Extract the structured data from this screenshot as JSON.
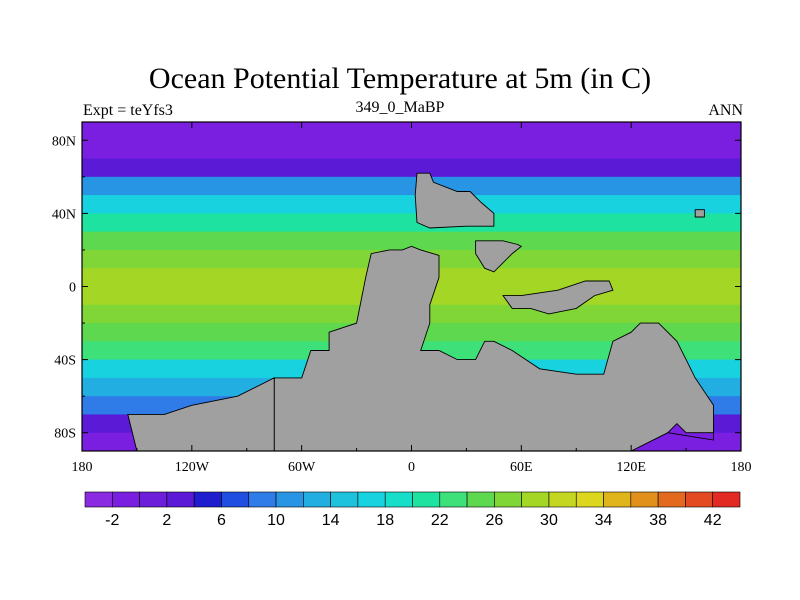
{
  "chart_data": {
    "type": "heatmap",
    "title": "Ocean Potential Temperature at 5m (in C)",
    "left_string": "Expt = teYfs3",
    "center_string": "349_0_MaBP",
    "right_string": "ANN",
    "x_range": [
      -180,
      180
    ],
    "y_range": [
      -90,
      90
    ],
    "x_ticks": [
      {
        "value": -180,
        "label": "180"
      },
      {
        "value": -120,
        "label": "120W"
      },
      {
        "value": -60,
        "label": "60W"
      },
      {
        "value": 0,
        "label": "0"
      },
      {
        "value": 60,
        "label": "60E"
      },
      {
        "value": 120,
        "label": "120E"
      },
      {
        "value": 180,
        "label": "180"
      }
    ],
    "y_ticks": [
      {
        "value": 80,
        "label": "80N"
      },
      {
        "value": 40,
        "label": "40N"
      },
      {
        "value": 0,
        "label": "0"
      },
      {
        "value": -40,
        "label": "40S"
      },
      {
        "value": -80,
        "label": "80S"
      }
    ],
    "colorbar": {
      "boundaries": [
        -4,
        -2,
        0,
        2,
        4,
        6,
        8,
        10,
        12,
        14,
        16,
        18,
        20,
        22,
        24,
        26,
        28,
        30,
        32,
        34,
        36,
        38,
        40,
        42,
        44
      ],
      "labels": [
        {
          "value": -2,
          "label": "-2"
        },
        {
          "value": 2,
          "label": "2"
        },
        {
          "value": 6,
          "label": "6"
        },
        {
          "value": 10,
          "label": "10"
        },
        {
          "value": 14,
          "label": "14"
        },
        {
          "value": 18,
          "label": "18"
        },
        {
          "value": 22,
          "label": "22"
        },
        {
          "value": 26,
          "label": "26"
        },
        {
          "value": 30,
          "label": "30"
        },
        {
          "value": 34,
          "label": "34"
        },
        {
          "value": 38,
          "label": "38"
        },
        {
          "value": 42,
          "label": "42"
        }
      ],
      "colors": [
        "#8a2be2",
        "#7a1fe0",
        "#6c1ed8",
        "#5a1ad6",
        "#1e1ecf",
        "#1f4ee0",
        "#2f7be8",
        "#2795e3",
        "#22aee0",
        "#1ec2dd",
        "#18d2e0",
        "#16dec8",
        "#1ee3a0",
        "#3ee07a",
        "#5ed84e",
        "#80d636",
        "#a3d625",
        "#c4d622",
        "#dcd61e",
        "#e0b51c",
        "#e2901c",
        "#e2691e",
        "#e34a22",
        "#e32a22"
      ]
    },
    "zonal_mean_temperature": [
      {
        "lat": 85,
        "value": -1.5
      },
      {
        "lat": 75,
        "value": -0.5
      },
      {
        "lat": 65,
        "value": 2
      },
      {
        "lat": 55,
        "value": 11
      },
      {
        "lat": 45,
        "value": 17
      },
      {
        "lat": 35,
        "value": 21
      },
      {
        "lat": 25,
        "value": 24
      },
      {
        "lat": 15,
        "value": 27
      },
      {
        "lat": 5,
        "value": 29
      },
      {
        "lat": -5,
        "value": 29
      },
      {
        "lat": -15,
        "value": 27
      },
      {
        "lat": -25,
        "value": 25
      },
      {
        "lat": -35,
        "value": 22
      },
      {
        "lat": -45,
        "value": 17
      },
      {
        "lat": -55,
        "value": 12
      },
      {
        "lat": -65,
        "value": 8
      },
      {
        "lat": -75,
        "value": 2
      },
      {
        "lat": -85,
        "value": -1
      }
    ],
    "land_color": "#a0a0a0",
    "land_polygons": [
      {
        "name": "western-continent",
        "points": [
          [
            -75,
            -90
          ],
          [
            -75,
            -50
          ],
          [
            -60,
            -50
          ],
          [
            -55,
            -35
          ],
          [
            -45,
            -35
          ],
          [
            -45,
            -25
          ],
          [
            -30,
            -20
          ],
          [
            -25,
            5
          ],
          [
            -22,
            18
          ],
          [
            -12,
            20
          ],
          [
            -5,
            20
          ],
          [
            0,
            22
          ],
          [
            5,
            20
          ],
          [
            15,
            17
          ],
          [
            15,
            5
          ],
          [
            10,
            -10
          ],
          [
            10,
            -20
          ],
          [
            5,
            -35
          ],
          [
            15,
            -35
          ],
          [
            25,
            -40
          ],
          [
            35,
            -40
          ],
          [
            40,
            -30
          ],
          [
            45,
            -30
          ],
          [
            55,
            -35
          ],
          [
            70,
            -45
          ],
          [
            90,
            -48
          ],
          [
            105,
            -48
          ],
          [
            110,
            -30
          ],
          [
            120,
            -25
          ],
          [
            125,
            -20
          ],
          [
            135,
            -20
          ],
          [
            145,
            -30
          ],
          [
            150,
            -40
          ],
          [
            155,
            -50
          ],
          [
            165,
            -65
          ],
          [
            165,
            -80
          ],
          [
            150,
            -80
          ],
          [
            145,
            -75
          ],
          [
            140,
            -80
          ],
          [
            120,
            -90
          ]
        ]
      },
      {
        "name": "southern-landmass",
        "points": [
          [
            -150,
            -90
          ],
          [
            -155,
            -70
          ],
          [
            -135,
            -70
          ],
          [
            -120,
            -65
          ],
          [
            -95,
            -60
          ],
          [
            -75,
            -50
          ],
          [
            -75,
            -90
          ]
        ]
      },
      {
        "name": "northern-island",
        "points": [
          [
            3,
            62
          ],
          [
            10,
            62
          ],
          [
            12,
            57
          ],
          [
            25,
            52
          ],
          [
            32,
            52
          ],
          [
            38,
            46
          ],
          [
            45,
            40
          ],
          [
            45,
            33
          ],
          [
            30,
            33
          ],
          [
            10,
            32
          ],
          [
            3,
            35
          ],
          [
            2,
            50
          ]
        ]
      },
      {
        "name": "small-island-north",
        "points": [
          [
            35,
            25
          ],
          [
            50,
            25
          ],
          [
            58,
            23
          ],
          [
            60,
            22
          ],
          [
            55,
            18
          ],
          [
            45,
            8
          ],
          [
            40,
            10
          ],
          [
            35,
            18
          ]
        ]
      },
      {
        "name": "small-island-east",
        "points": [
          [
            155,
            42
          ],
          [
            160,
            42
          ],
          [
            160,
            38
          ],
          [
            155,
            38
          ]
        ]
      },
      {
        "name": "equatorial-island",
        "points": [
          [
            50,
            -5
          ],
          [
            60,
            -5
          ],
          [
            80,
            -2
          ],
          [
            95,
            3
          ],
          [
            108,
            3
          ],
          [
            110,
            -2
          ],
          [
            100,
            -5
          ],
          [
            90,
            -12
          ],
          [
            75,
            -15
          ],
          [
            65,
            -12
          ],
          [
            55,
            -12
          ]
        ]
      }
    ],
    "ice_ocean_patches": [
      {
        "name": "southern-cold-patch-west",
        "value": -2,
        "points": [
          [
            -150,
            -82
          ],
          [
            -148,
            -86
          ],
          [
            -60,
            -84
          ],
          [
            -35,
            -80
          ],
          [
            -30,
            -72
          ],
          [
            -50,
            -65
          ],
          [
            -75,
            -62
          ],
          [
            -110,
            -70
          ],
          [
            -130,
            -72
          ],
          [
            -145,
            -76
          ]
        ]
      },
      {
        "name": "southern-cold-patch-east",
        "value": -2,
        "points": [
          [
            135,
            -75
          ],
          [
            140,
            -80
          ],
          [
            165,
            -84
          ],
          [
            165,
            -78
          ],
          [
            150,
            -76
          ],
          [
            140,
            -73
          ]
        ]
      }
    ]
  }
}
